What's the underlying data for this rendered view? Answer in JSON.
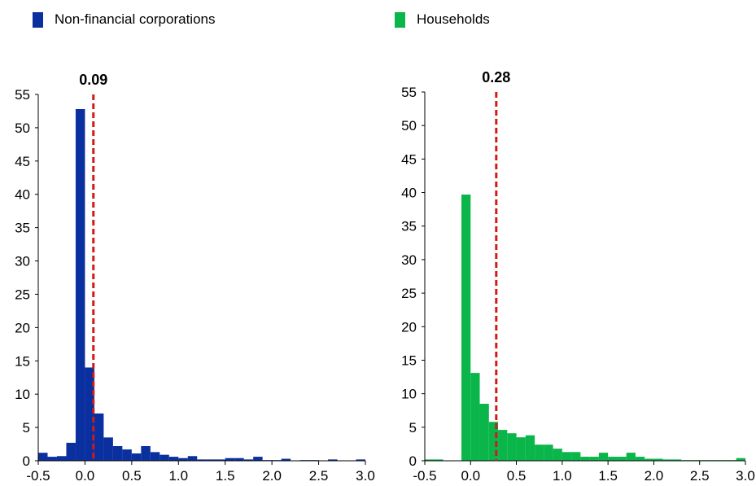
{
  "legend": {
    "nfc": {
      "label": "Non-financial corporations",
      "color": "#0a2f9e"
    },
    "hh": {
      "label": "Households",
      "color": "#0ab54a"
    }
  },
  "chart_data": [
    {
      "type": "bar",
      "series_name": "Non-financial corporations",
      "color": "#0a2f9e",
      "xlim": [
        -0.5,
        3.0
      ],
      "ylim": [
        0,
        55
      ],
      "xticks": [
        "-0.5",
        "0.0",
        "0.5",
        "1.0",
        "1.5",
        "2.0",
        "2.5",
        "3.0"
      ],
      "yticks": [
        "0",
        "5",
        "10",
        "15",
        "20",
        "25",
        "30",
        "35",
        "40",
        "45",
        "50",
        "55"
      ],
      "bin_width": 0.1,
      "bin_starts": [
        -0.5,
        -0.4,
        -0.3,
        -0.2,
        -0.1,
        0.0,
        0.1,
        0.2,
        0.3,
        0.4,
        0.5,
        0.6,
        0.7,
        0.8,
        0.9,
        1.0,
        1.1,
        1.2,
        1.3,
        1.4,
        1.5,
        1.6,
        1.7,
        1.8,
        1.9,
        2.0,
        2.1,
        2.2,
        2.3,
        2.4,
        2.5,
        2.6,
        2.7,
        2.8,
        2.9
      ],
      "values": [
        1.2,
        0.6,
        0.7,
        2.7,
        52.8,
        14.0,
        7.1,
        3.5,
        2.2,
        1.7,
        1.1,
        2.2,
        1.3,
        0.9,
        0.6,
        0.4,
        0.7,
        0.2,
        0.2,
        0.2,
        0.4,
        0.4,
        0.2,
        0.6,
        0.1,
        0.1,
        0.3,
        0.0,
        0.1,
        0.1,
        0.0,
        0.2,
        0.0,
        0.0,
        0.2
      ],
      "mean": 0.09,
      "mean_label": "0.09"
    },
    {
      "type": "bar",
      "series_name": "Households",
      "color": "#0ab54a",
      "xlim": [
        -0.5,
        3.0
      ],
      "ylim": [
        0,
        55
      ],
      "xticks": [
        "-0.5",
        "0.0",
        "0.5",
        "1.0",
        "1.5",
        "2.0",
        "2.5",
        "3.0"
      ],
      "yticks": [
        "0",
        "5",
        "10",
        "15",
        "20",
        "25",
        "30",
        "35",
        "40",
        "45",
        "50",
        "55"
      ],
      "bin_width": 0.1,
      "bin_starts": [
        -0.5,
        -0.4,
        -0.3,
        -0.2,
        -0.1,
        0.0,
        0.1,
        0.2,
        0.3,
        0.4,
        0.5,
        0.6,
        0.7,
        0.8,
        0.9,
        1.0,
        1.1,
        1.2,
        1.3,
        1.4,
        1.5,
        1.6,
        1.7,
        1.8,
        1.9,
        2.0,
        2.1,
        2.2,
        2.3,
        2.4,
        2.5,
        2.6,
        2.7,
        2.8,
        2.9
      ],
      "values": [
        0.2,
        0.2,
        0.0,
        0.0,
        39.7,
        13.1,
        8.5,
        5.8,
        4.6,
        4.1,
        3.5,
        3.8,
        2.4,
        2.4,
        1.8,
        1.3,
        1.3,
        0.6,
        0.6,
        1.2,
        0.6,
        0.6,
        1.2,
        0.6,
        0.3,
        0.3,
        0.2,
        0.2,
        0.1,
        0.1,
        0.1,
        0.1,
        0.1,
        0.1,
        0.4
      ],
      "mean": 0.28,
      "mean_label": "0.28"
    }
  ]
}
